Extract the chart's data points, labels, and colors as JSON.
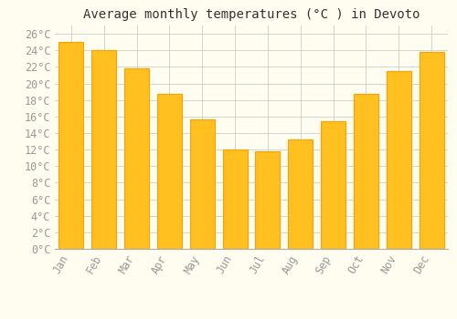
{
  "title": "Average monthly temperatures (°C ) in Devoto",
  "months": [
    "Jan",
    "Feb",
    "Mar",
    "Apr",
    "May",
    "Jun",
    "Jul",
    "Aug",
    "Sep",
    "Oct",
    "Nov",
    "Dec"
  ],
  "values": [
    25.0,
    24.0,
    21.8,
    18.7,
    15.6,
    12.0,
    11.8,
    13.2,
    15.4,
    18.7,
    21.5,
    23.8
  ],
  "bar_color": "#FFC020",
  "bar_edge_color": "#FFA000",
  "background_color": "#FFFDF0",
  "grid_color": "#CCCCCC",
  "text_color": "#999999",
  "ylim": [
    0,
    27
  ],
  "yticks": [
    0,
    2,
    4,
    6,
    8,
    10,
    12,
    14,
    16,
    18,
    20,
    22,
    24,
    26
  ],
  "title_fontsize": 10,
  "tick_fontsize": 8.5,
  "bar_width": 0.75
}
